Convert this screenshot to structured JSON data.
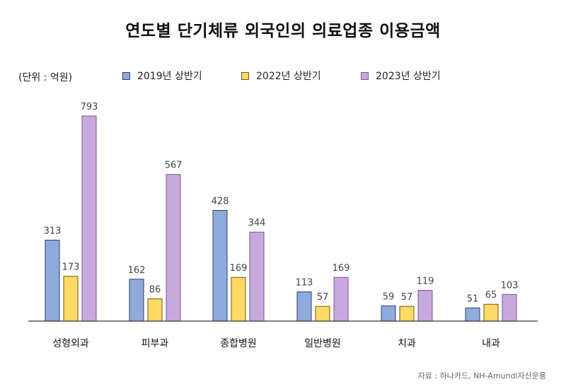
{
  "title": "연도별 단기체류 외국인의 의료업종 이용금액",
  "unit_label": "(단위 : 억원)",
  "source": "자료 :  하나카드, NH-Amundi자산운용",
  "colors": {
    "2019": "#8faadc",
    "2022": "#ffd966",
    "2023": "#c8a9dc",
    "2019_border": "#2f3d66",
    "2022_border": "#6b5a12",
    "2023_border": "#7c4fa0",
    "axis": "#333333"
  },
  "chart_data": {
    "type": "bar",
    "categories": [
      "성형외과",
      "피부과",
      "종합병원",
      "일반병원",
      "치과",
      "내과"
    ],
    "series": [
      {
        "name": "2019년 상반기",
        "key": "2019",
        "values": [
          313,
          162,
          428,
          113,
          59,
          51
        ]
      },
      {
        "name": "2022년 상반기",
        "key": "2022",
        "values": [
          173,
          86,
          169,
          57,
          57,
          65
        ]
      },
      {
        "name": "2023년 상반기",
        "key": "2023",
        "values": [
          793,
          567,
          344,
          169,
          119,
          103
        ]
      }
    ],
    "ylim": [
      0,
      793
    ],
    "grid": false,
    "legend": "top"
  }
}
